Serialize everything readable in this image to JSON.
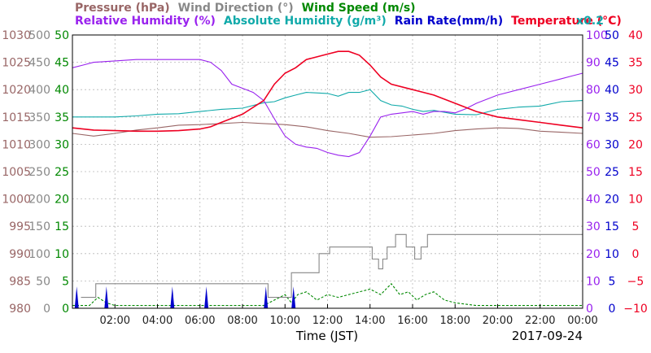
{
  "chart_data": {
    "type": "line",
    "xlabel": "Time (JST)",
    "date_label": "2017-09-24",
    "x_tick_labels": [
      "02:00",
      "04:00",
      "06:00",
      "08:00",
      "10:00",
      "12:00",
      "14:00",
      "16:00",
      "18:00",
      "20:00",
      "22:00",
      "00:00"
    ],
    "x_range_hours": [
      0,
      24
    ],
    "grid": true,
    "legend_placement": "top",
    "legend": [
      {
        "name": "Pressure (hPa)",
        "color": "#996666"
      },
      {
        "name": "Wind Direction (°)",
        "color": "#888888"
      },
      {
        "name": "Wind Speed (m/s)",
        "color": "#008800"
      },
      {
        "name": "Relative Humidity (%)",
        "color": "#9922ee"
      },
      {
        "name": "Absolute Humidity (g/m³)",
        "color": "#11aaaa"
      },
      {
        "name": "Rain Rate(mm/h)",
        "color": "#0000cc"
      },
      {
        "name": "Temperature (°C)",
        "color": "#ee0022"
      }
    ],
    "rain_scale_note": "x0.2",
    "axes": [
      {
        "name": "pressure",
        "side": "left",
        "color": "#996666",
        "range": [
          980,
          1030
        ],
        "ticks": [
          "1030",
          "1025",
          "1020",
          "1015",
          "1010",
          "1005",
          "1000",
          "995",
          "990",
          "985",
          "980"
        ]
      },
      {
        "name": "wind_direction",
        "side": "left",
        "color": "#888888",
        "range": [
          0,
          500
        ],
        "ticks": [
          "500",
          "450",
          "400",
          "350",
          "300",
          "250",
          "200",
          "150",
          "100",
          "50",
          "0"
        ]
      },
      {
        "name": "wind_speed",
        "side": "left",
        "color": "#008800",
        "range": [
          0,
          50
        ],
        "ticks": [
          "50",
          "45",
          "40",
          "35",
          "30",
          "25",
          "20",
          "15",
          "10",
          "5",
          "0"
        ]
      },
      {
        "name": "relative_humidity",
        "side": "right",
        "color": "#9922ee",
        "range": [
          0,
          100
        ],
        "ticks": [
          "100",
          "90",
          "80",
          "70",
          "60",
          "50",
          "40",
          "30",
          "20",
          "10",
          "0"
        ]
      },
      {
        "name": "rain_rate",
        "side": "right",
        "color": "#0000cc",
        "range": [
          0,
          50
        ],
        "ticks": [
          "50",
          "45",
          "40",
          "35",
          "30",
          "25",
          "20",
          "15",
          "10",
          "5",
          "0"
        ]
      },
      {
        "name": "temperature",
        "side": "right",
        "color": "#ee0022",
        "range": [
          -10,
          40
        ],
        "ticks": [
          "40",
          "35",
          "30",
          "25",
          "20",
          "15",
          "10",
          "5",
          "0",
          "−5",
          "−10"
        ]
      }
    ],
    "series": [
      {
        "name": "Temperature (°C)",
        "axis": "temperature",
        "color": "#ee0022",
        "points": [
          [
            0,
            23
          ],
          [
            1,
            22.6
          ],
          [
            2,
            22.5
          ],
          [
            3,
            22.4
          ],
          [
            4,
            22.4
          ],
          [
            5,
            22.5
          ],
          [
            6,
            22.8
          ],
          [
            6.5,
            23.2
          ],
          [
            7,
            24
          ],
          [
            8,
            25.5
          ],
          [
            9,
            28
          ],
          [
            9.5,
            31
          ],
          [
            10,
            33
          ],
          [
            10.5,
            34
          ],
          [
            11,
            35.5
          ],
          [
            12,
            36.5
          ],
          [
            12.5,
            37
          ],
          [
            13,
            37
          ],
          [
            13.5,
            36.3
          ],
          [
            14,
            34.5
          ],
          [
            14.5,
            32.3
          ],
          [
            15,
            31
          ],
          [
            16,
            30
          ],
          [
            17,
            29
          ],
          [
            18,
            27.5
          ],
          [
            19,
            26
          ],
          [
            20,
            25
          ],
          [
            21,
            24.5
          ],
          [
            22,
            24
          ],
          [
            23,
            23.5
          ],
          [
            24,
            23
          ]
        ]
      },
      {
        "name": "Relative Humidity (%)",
        "color": "#9922ee",
        "axis": "relative_humidity",
        "points": [
          [
            0,
            88
          ],
          [
            0.5,
            89
          ],
          [
            1,
            90
          ],
          [
            2,
            90.5
          ],
          [
            3,
            91
          ],
          [
            4,
            91
          ],
          [
            5,
            91
          ],
          [
            6,
            91
          ],
          [
            6.5,
            90
          ],
          [
            7,
            87
          ],
          [
            7.5,
            82
          ],
          [
            8,
            80.5
          ],
          [
            8.5,
            79
          ],
          [
            9,
            76
          ],
          [
            9.3,
            72
          ],
          [
            9.6,
            68
          ],
          [
            10,
            63
          ],
          [
            10.5,
            60
          ],
          [
            11,
            59
          ],
          [
            11.5,
            58.5
          ],
          [
            12,
            57
          ],
          [
            12.5,
            56
          ],
          [
            13,
            55.5
          ],
          [
            13.5,
            57
          ],
          [
            14,
            63
          ],
          [
            14.5,
            70
          ],
          [
            15,
            71
          ],
          [
            15.5,
            71.5
          ],
          [
            16,
            72
          ],
          [
            16.5,
            71
          ],
          [
            17,
            72
          ],
          [
            17.5,
            72
          ],
          [
            18,
            71.5
          ],
          [
            18.5,
            73
          ],
          [
            19,
            75
          ],
          [
            20,
            78
          ],
          [
            21,
            80
          ],
          [
            22,
            82
          ],
          [
            23,
            84
          ],
          [
            23.5,
            85
          ],
          [
            24,
            86
          ]
        ]
      },
      {
        "name": "Absolute Humidity (g/m³)",
        "color": "#11aaaa",
        "axis": "wind_speed",
        "points": [
          [
            0,
            35
          ],
          [
            1,
            35
          ],
          [
            2,
            35
          ],
          [
            3,
            35.2
          ],
          [
            4,
            35.5
          ],
          [
            5,
            35.6
          ],
          [
            6,
            36
          ],
          [
            7,
            36.4
          ],
          [
            8,
            36.6
          ],
          [
            9,
            37.6
          ],
          [
            9.5,
            37.8
          ],
          [
            10,
            38.5
          ],
          [
            10.5,
            39
          ],
          [
            11,
            39.5
          ],
          [
            12,
            39.3
          ],
          [
            12.5,
            38.8
          ],
          [
            13,
            39.5
          ],
          [
            13.5,
            39.5
          ],
          [
            14,
            40
          ],
          [
            14.5,
            38
          ],
          [
            15,
            37.2
          ],
          [
            15.5,
            37
          ],
          [
            16,
            36.4
          ],
          [
            16.5,
            36
          ],
          [
            17,
            36.2
          ],
          [
            18,
            35.5
          ],
          [
            19,
            35.4
          ],
          [
            20,
            36.4
          ],
          [
            21,
            36.8
          ],
          [
            22,
            37
          ],
          [
            23,
            37.8
          ],
          [
            24,
            38
          ]
        ]
      },
      {
        "name": "Pressure (hPa)",
        "color": "#996666",
        "axis": "pressure",
        "points": [
          [
            0,
            1012
          ],
          [
            1,
            1011.5
          ],
          [
            2,
            1012
          ],
          [
            3,
            1012.6
          ],
          [
            4,
            1013
          ],
          [
            5,
            1013.5
          ],
          [
            6,
            1013.6
          ],
          [
            7,
            1013.8
          ],
          [
            8,
            1014
          ],
          [
            9,
            1013.8
          ],
          [
            10,
            1013.6
          ],
          [
            11,
            1013.2
          ],
          [
            12,
            1012.5
          ],
          [
            13,
            1012
          ],
          [
            14,
            1011.3
          ],
          [
            15,
            1011.4
          ],
          [
            16,
            1011.7
          ],
          [
            17,
            1012
          ],
          [
            18,
            1012.5
          ],
          [
            19,
            1012.8
          ],
          [
            20,
            1013
          ],
          [
            21,
            1012.9
          ],
          [
            22,
            1012.4
          ],
          [
            23,
            1012.2
          ],
          [
            24,
            1012
          ]
        ]
      },
      {
        "name": "Wind Direction (°)",
        "color": "#888888",
        "axis": "wind_direction",
        "points": [
          [
            0.4,
            20
          ],
          [
            1.1,
            20
          ],
          [
            1.1,
            45
          ],
          [
            9.2,
            45
          ],
          [
            9.2,
            20
          ],
          [
            10.3,
            20
          ],
          [
            10.3,
            65
          ],
          [
            11.6,
            65
          ],
          [
            11.6,
            100
          ],
          [
            12.1,
            100
          ],
          [
            12.1,
            112
          ],
          [
            14.1,
            112
          ],
          [
            14.1,
            90
          ],
          [
            14.4,
            90
          ],
          [
            14.4,
            72
          ],
          [
            14.6,
            72
          ],
          [
            14.6,
            90
          ],
          [
            14.8,
            90
          ],
          [
            14.8,
            112
          ],
          [
            15.2,
            112
          ],
          [
            15.2,
            135
          ],
          [
            15.7,
            135
          ],
          [
            15.7,
            112
          ],
          [
            16.1,
            112
          ],
          [
            16.1,
            90
          ],
          [
            16.4,
            90
          ],
          [
            16.4,
            112
          ],
          [
            16.7,
            112
          ],
          [
            16.7,
            135
          ],
          [
            24,
            135
          ]
        ]
      },
      {
        "name": "Wind Speed (m/s)",
        "color": "#008800",
        "axis": "wind_speed",
        "points": [
          [
            0,
            0.5
          ],
          [
            0.8,
            0.5
          ],
          [
            1.2,
            2
          ],
          [
            1.6,
            1
          ],
          [
            2,
            0.5
          ],
          [
            9,
            0.5
          ],
          [
            9.5,
            1.5
          ],
          [
            10,
            2.5
          ],
          [
            10.3,
            1
          ],
          [
            10.6,
            2.5
          ],
          [
            11,
            3
          ],
          [
            11.5,
            1.5
          ],
          [
            12,
            2.5
          ],
          [
            12.5,
            2
          ],
          [
            13,
            2.5
          ],
          [
            13.5,
            3
          ],
          [
            14,
            3.5
          ],
          [
            14.5,
            2.5
          ],
          [
            15,
            4.5
          ],
          [
            15.4,
            2.5
          ],
          [
            15.8,
            3
          ],
          [
            16.2,
            1.5
          ],
          [
            16.6,
            2.5
          ],
          [
            17,
            3
          ],
          [
            17.5,
            1.5
          ],
          [
            18,
            1
          ],
          [
            19,
            0.5
          ],
          [
            20,
            0.5
          ],
          [
            21,
            0.5
          ],
          [
            22,
            0.5
          ],
          [
            23,
            0.5
          ],
          [
            24,
            0.5
          ]
        ]
      },
      {
        "name": "Rain Rate(mm/h)",
        "color": "#0000cc",
        "axis": "rain_rate",
        "style": "spikes",
        "points": [
          [
            0.2,
            4
          ],
          [
            1.6,
            4
          ],
          [
            4.7,
            4
          ],
          [
            6.3,
            4
          ],
          [
            9.1,
            4
          ],
          [
            10.4,
            4
          ]
        ]
      }
    ]
  }
}
